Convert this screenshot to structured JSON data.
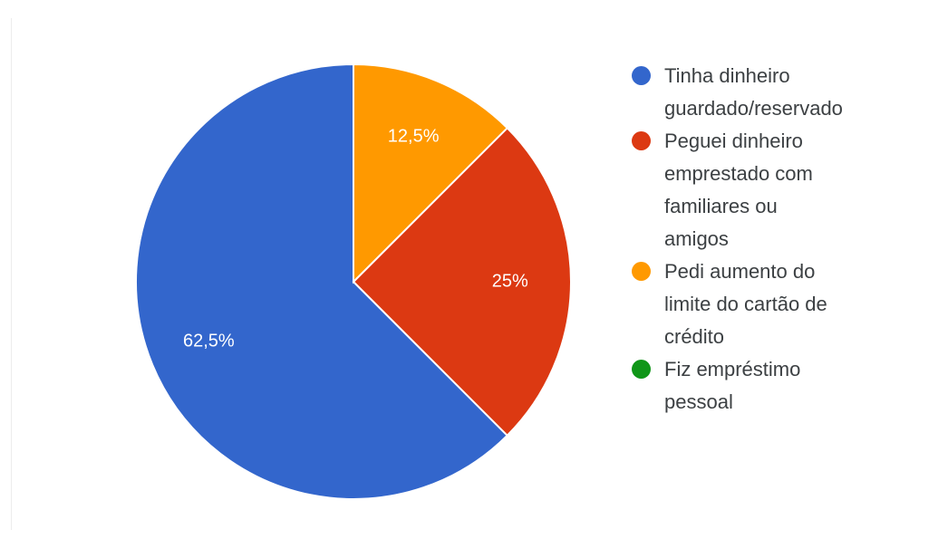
{
  "chart_data": {
    "type": "pie",
    "slices": [
      {
        "label": "Tinha dinheiro guardado/reservado",
        "value": 62.5,
        "display": "62,5%",
        "color": "#3366cc"
      },
      {
        "label": "Peguei dinheiro emprestado com familiares ou amigos",
        "value": 25,
        "display": "25%",
        "color": "#dc3912"
      },
      {
        "label": "Pedi aumento do limite do cartão de crédito",
        "value": 12.5,
        "display": "12,5%",
        "color": "#ff9900"
      },
      {
        "label": "Fiz empréstimo pessoal",
        "value": 0,
        "display": "",
        "color": "#109618"
      }
    ],
    "legend_position": "right",
    "start": "top",
    "direction": "counter-clockwise"
  },
  "legend": {
    "items": [
      {
        "text": "Tinha dinheiro\nguardado/reservado",
        "color": "#3366cc"
      },
      {
        "text": "Peguei dinheiro\nemprestado com\nfamiliares ou\namigos",
        "color": "#dc3912"
      },
      {
        "text": "Pedi aumento do\nlimite do cartão de\ncrédito",
        "color": "#ff9900"
      },
      {
        "text": "Fiz empréstimo\npessoal",
        "color": "#109618"
      }
    ]
  }
}
